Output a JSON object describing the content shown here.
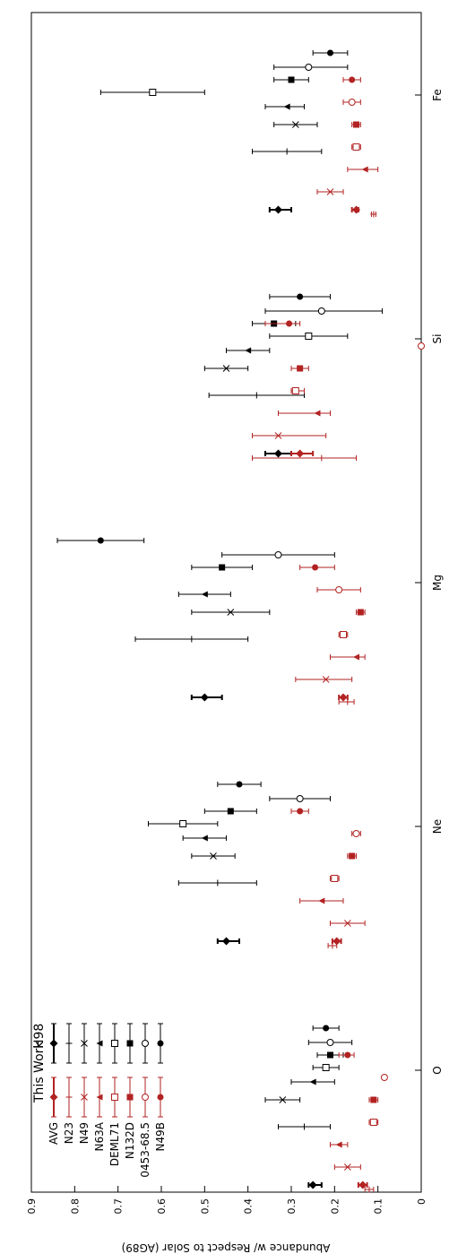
{
  "chart_data": {
    "type": "scatter",
    "orientation": "rotated-90",
    "ylabel": "Abundance w/ Respect to Solar (AG89)",
    "ylim": [
      0,
      0.9
    ],
    "yticks": [
      "0.9",
      "0.8",
      "0.7",
      "0.6",
      "0.5",
      "0.4",
      "0.3",
      "0.2",
      "0.1",
      "0"
    ],
    "categories": [
      "O",
      "Ne",
      "Mg",
      "Si",
      "Fe"
    ],
    "grid": false,
    "legend": {
      "groups": [
        {
          "title": "This Work",
          "color": "#b22222"
        },
        {
          "title": "H98",
          "color": "#000000"
        }
      ],
      "entries": [
        "AVG",
        "N23",
        "N49",
        "N63A",
        "DEML71",
        "N132D",
        "0453-68.5",
        "N49B"
      ],
      "markers": [
        "diamond",
        "plus",
        "cross",
        "triangle",
        "square-open",
        "square-filled",
        "circle-open",
        "circle-filled"
      ]
    },
    "colors": {
      "this_work": "#b22222",
      "h98": "#000000"
    },
    "series": [
      {
        "group": "H98",
        "name": "AVG",
        "marker": "diamond",
        "values": [
          {
            "cat": "O",
            "v": 0.25,
            "lo": 0.23,
            "hi": 0.26
          },
          {
            "cat": "Ne",
            "v": 0.45,
            "lo": 0.42,
            "hi": 0.47
          },
          {
            "cat": "Mg",
            "v": 0.5,
            "lo": 0.46,
            "hi": 0.53
          },
          {
            "cat": "Si",
            "v": 0.33,
            "lo": 0.3,
            "hi": 0.36
          },
          {
            "cat": "Fe",
            "v": 0.33,
            "lo": 0.3,
            "hi": 0.35
          }
        ]
      },
      {
        "group": "This Work",
        "name": "AVG",
        "marker": "diamond",
        "values": [
          {
            "cat": "O",
            "v": 0.135,
            "lo": 0.125,
            "hi": 0.145
          },
          {
            "cat": "Ne",
            "v": 0.195,
            "lo": 0.185,
            "hi": 0.205
          },
          {
            "cat": "Mg",
            "v": 0.18,
            "lo": 0.17,
            "hi": 0.19
          },
          {
            "cat": "Si",
            "v": 0.28,
            "lo": 0.25,
            "hi": 0.3
          },
          {
            "cat": "Fe",
            "v": 0.15,
            "lo": 0.145,
            "hi": 0.16
          }
        ]
      },
      {
        "group": "H98",
        "name": "N23",
        "marker": "plus",
        "values": [
          {
            "cat": "O",
            "v": 0.27,
            "lo": 0.21,
            "hi": 0.33
          },
          {
            "cat": "Ne",
            "v": 0.47,
            "lo": 0.38,
            "hi": 0.56
          },
          {
            "cat": "Mg",
            "v": 0.53,
            "lo": 0.4,
            "hi": 0.66
          },
          {
            "cat": "Si",
            "v": 0.38,
            "lo": 0.27,
            "hi": 0.49
          },
          {
            "cat": "Fe",
            "v": 0.31,
            "lo": 0.23,
            "hi": 0.39
          }
        ]
      },
      {
        "group": "This Work",
        "name": "N23",
        "marker": "plus",
        "values": [
          {
            "cat": "O",
            "v": 0.12,
            "lo": 0.11,
            "hi": 0.13
          },
          {
            "cat": "Ne",
            "v": 0.205,
            "lo": 0.195,
            "hi": 0.215
          },
          {
            "cat": "Mg",
            "v": 0.17,
            "lo": 0.155,
            "hi": 0.19
          },
          {
            "cat": "Si",
            "v": 0.23,
            "lo": 0.15,
            "hi": 0.39
          },
          {
            "cat": "Fe",
            "v": 0.11,
            "lo": 0.105,
            "hi": 0.115
          }
        ]
      },
      {
        "group": "H98",
        "name": "N49",
        "marker": "cross",
        "values": [
          {
            "cat": "O",
            "v": 0.32,
            "lo": 0.28,
            "hi": 0.36
          },
          {
            "cat": "Ne",
            "v": 0.48,
            "lo": 0.43,
            "hi": 0.53
          },
          {
            "cat": "Mg",
            "v": 0.44,
            "lo": 0.35,
            "hi": 0.53
          },
          {
            "cat": "Si",
            "v": 0.45,
            "lo": 0.4,
            "hi": 0.5
          },
          {
            "cat": "Fe",
            "v": 0.29,
            "lo": 0.24,
            "hi": 0.34
          }
        ]
      },
      {
        "group": "This Work",
        "name": "N49",
        "marker": "cross",
        "values": [
          {
            "cat": "O",
            "v": 0.17,
            "lo": 0.14,
            "hi": 0.2
          },
          {
            "cat": "Ne",
            "v": 0.17,
            "lo": 0.13,
            "hi": 0.21
          },
          {
            "cat": "Mg",
            "v": 0.22,
            "lo": 0.16,
            "hi": 0.29
          },
          {
            "cat": "Si",
            "v": 0.33,
            "lo": 0.22,
            "hi": 0.39
          },
          {
            "cat": "Fe",
            "v": 0.21,
            "lo": 0.18,
            "hi": 0.24
          }
        ]
      },
      {
        "group": "H98",
        "name": "N63A",
        "marker": "triangle",
        "values": [
          {
            "cat": "O",
            "v": 0.25,
            "lo": 0.2,
            "hi": 0.3
          },
          {
            "cat": "Ne",
            "v": 0.5,
            "lo": 0.45,
            "hi": 0.55
          },
          {
            "cat": "Mg",
            "v": 0.5,
            "lo": 0.44,
            "hi": 0.56
          },
          {
            "cat": "Si",
            "v": 0.4,
            "lo": 0.35,
            "hi": 0.45
          },
          {
            "cat": "Fe",
            "v": 0.31,
            "lo": 0.27,
            "hi": 0.36
          }
        ]
      },
      {
        "group": "This Work",
        "name": "N63A",
        "marker": "triangle",
        "values": [
          {
            "cat": "O",
            "v": 0.19,
            "lo": 0.17,
            "hi": 0.21
          },
          {
            "cat": "Ne",
            "v": 0.23,
            "lo": 0.18,
            "hi": 0.28
          },
          {
            "cat": "Mg",
            "v": 0.15,
            "lo": 0.13,
            "hi": 0.21
          },
          {
            "cat": "Si",
            "v": 0.24,
            "lo": 0.21,
            "hi": 0.33
          },
          {
            "cat": "Fe",
            "v": 0.13,
            "lo": 0.1,
            "hi": 0.17
          }
        ]
      },
      {
        "group": "H98",
        "name": "DEML71",
        "marker": "square-open",
        "values": [
          {
            "cat": "O",
            "v": 0.22,
            "lo": 0.19,
            "hi": 0.25
          },
          {
            "cat": "Ne",
            "v": 0.55,
            "lo": 0.47,
            "hi": 0.63
          },
          {
            "cat": "Mg",
            "v": null,
            "lo": null,
            "hi": null
          },
          {
            "cat": "Si",
            "v": 0.26,
            "lo": 0.17,
            "hi": 0.35
          },
          {
            "cat": "Fe",
            "v": 0.62,
            "lo": 0.5,
            "hi": 0.74
          }
        ]
      },
      {
        "group": "This Work",
        "name": "DEML71",
        "marker": "square-open",
        "values": [
          {
            "cat": "O",
            "v": 0.11,
            "lo": 0.1,
            "hi": 0.12
          },
          {
            "cat": "Ne",
            "v": 0.2,
            "lo": 0.19,
            "hi": 0.21
          },
          {
            "cat": "Mg",
            "v": 0.18,
            "lo": 0.17,
            "hi": 0.19
          },
          {
            "cat": "Si",
            "v": 0.29,
            "lo": 0.27,
            "hi": 0.3
          },
          {
            "cat": "Fe",
            "v": 0.15,
            "lo": 0.14,
            "hi": 0.16
          }
        ]
      },
      {
        "group": "H98",
        "name": "N132D",
        "marker": "square-filled",
        "values": [
          {
            "cat": "O",
            "v": 0.21,
            "lo": 0.18,
            "hi": 0.24
          },
          {
            "cat": "Ne",
            "v": 0.44,
            "lo": 0.38,
            "hi": 0.5
          },
          {
            "cat": "Mg",
            "v": 0.46,
            "lo": 0.39,
            "hi": 0.53
          },
          {
            "cat": "Si",
            "v": 0.34,
            "lo": 0.29,
            "hi": 0.39
          },
          {
            "cat": "Fe",
            "v": 0.3,
            "lo": 0.26,
            "hi": 0.34
          }
        ]
      },
      {
        "group": "This Work",
        "name": "N132D",
        "marker": "square-filled",
        "values": [
          {
            "cat": "O",
            "v": 0.11,
            "lo": 0.1,
            "hi": 0.12
          },
          {
            "cat": "Ne",
            "v": 0.16,
            "lo": 0.15,
            "hi": 0.17
          },
          {
            "cat": "Mg",
            "v": 0.14,
            "lo": 0.13,
            "hi": 0.15
          },
          {
            "cat": "Si",
            "v": 0.28,
            "lo": 0.26,
            "hi": 0.3
          },
          {
            "cat": "Fe",
            "v": 0.15,
            "lo": 0.14,
            "hi": 0.16
          }
        ]
      },
      {
        "group": "H98",
        "name": "0453-68.5",
        "marker": "circle-open",
        "values": [
          {
            "cat": "O",
            "v": 0.21,
            "lo": 0.16,
            "hi": 0.26
          },
          {
            "cat": "Ne",
            "v": 0.28,
            "lo": 0.21,
            "hi": 0.35
          },
          {
            "cat": "Mg",
            "v": 0.33,
            "lo": 0.2,
            "hi": 0.46
          },
          {
            "cat": "Si",
            "v": 0.23,
            "lo": 0.09,
            "hi": 0.36
          },
          {
            "cat": "Fe",
            "v": 0.26,
            "lo": 0.17,
            "hi": 0.34
          }
        ]
      },
      {
        "group": "This Work",
        "name": "0453-68.5",
        "marker": "circle-open",
        "values": [
          {
            "cat": "O",
            "v": 0.085,
            "lo": 0.08,
            "hi": 0.09
          },
          {
            "cat": "Ne",
            "v": 0.15,
            "lo": 0.14,
            "hi": 0.16
          },
          {
            "cat": "Mg",
            "v": 0.19,
            "lo": 0.14,
            "hi": 0.24
          },
          {
            "cat": "Si",
            "v": 0.0,
            "lo": null,
            "hi": null
          },
          {
            "cat": "Fe",
            "v": 0.16,
            "lo": 0.14,
            "hi": 0.18
          }
        ]
      },
      {
        "group": "H98",
        "name": "N49B",
        "marker": "circle-filled",
        "values": [
          {
            "cat": "O",
            "v": 0.22,
            "lo": 0.19,
            "hi": 0.25
          },
          {
            "cat": "Ne",
            "v": 0.42,
            "lo": 0.37,
            "hi": 0.47
          },
          {
            "cat": "Mg",
            "v": 0.74,
            "lo": 0.64,
            "hi": 0.84
          },
          {
            "cat": "Si",
            "v": 0.28,
            "lo": 0.21,
            "hi": 0.35
          },
          {
            "cat": "Fe",
            "v": 0.21,
            "lo": 0.17,
            "hi": 0.25
          }
        ]
      },
      {
        "group": "This Work",
        "name": "N49B",
        "marker": "circle-filled",
        "values": [
          {
            "cat": "O",
            "v": 0.17,
            "lo": 0.155,
            "hi": 0.19
          },
          {
            "cat": "Ne",
            "v": 0.28,
            "lo": 0.26,
            "hi": 0.3
          },
          {
            "cat": "Mg",
            "v": 0.245,
            "lo": 0.2,
            "hi": 0.28
          },
          {
            "cat": "Si",
            "v": 0.305,
            "lo": 0.28,
            "hi": 0.36
          },
          {
            "cat": "Fe",
            "v": 0.16,
            "lo": 0.14,
            "hi": 0.18
          }
        ]
      }
    ]
  }
}
